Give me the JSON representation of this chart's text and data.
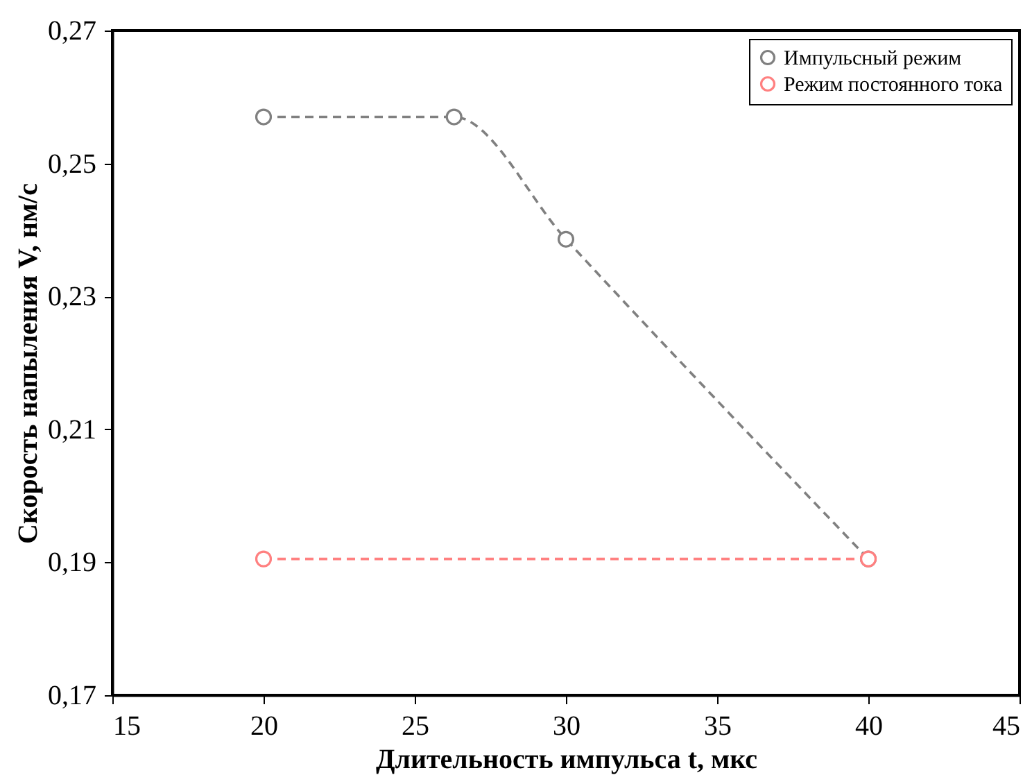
{
  "chart_data": {
    "type": "line",
    "xlabel": "Длительность импульса t, мкс",
    "ylabel": "Скорость напыления V, нм/с",
    "series": [
      {
        "name": "Импульсный режим",
        "color": "#808080",
        "x": [
          20,
          26.3,
          30,
          40
        ],
        "values": [
          0.257,
          0.257,
          0.2386,
          0.1905
        ]
      },
      {
        "name": "Режим постоянного тока",
        "color": "#ff8080",
        "x": [
          20,
          40
        ],
        "values": [
          0.1905,
          0.1905
        ]
      }
    ],
    "xlim": [
      15,
      45
    ],
    "xticks": [
      15,
      20,
      25,
      30,
      35,
      40,
      45
    ],
    "ylim": [
      0.17,
      0.27
    ],
    "yticks": [
      {
        "value": 0.17,
        "label": "0,17"
      },
      {
        "value": 0.19,
        "label": "0,19"
      },
      {
        "value": 0.21,
        "label": "0,21"
      },
      {
        "value": 0.23,
        "label": "0,23"
      },
      {
        "value": 0.25,
        "label": "0,25"
      },
      {
        "value": 0.27,
        "label": "0,27"
      }
    ],
    "grid": false,
    "legend": "top right",
    "marker": "circle",
    "line_style": "dashed"
  }
}
